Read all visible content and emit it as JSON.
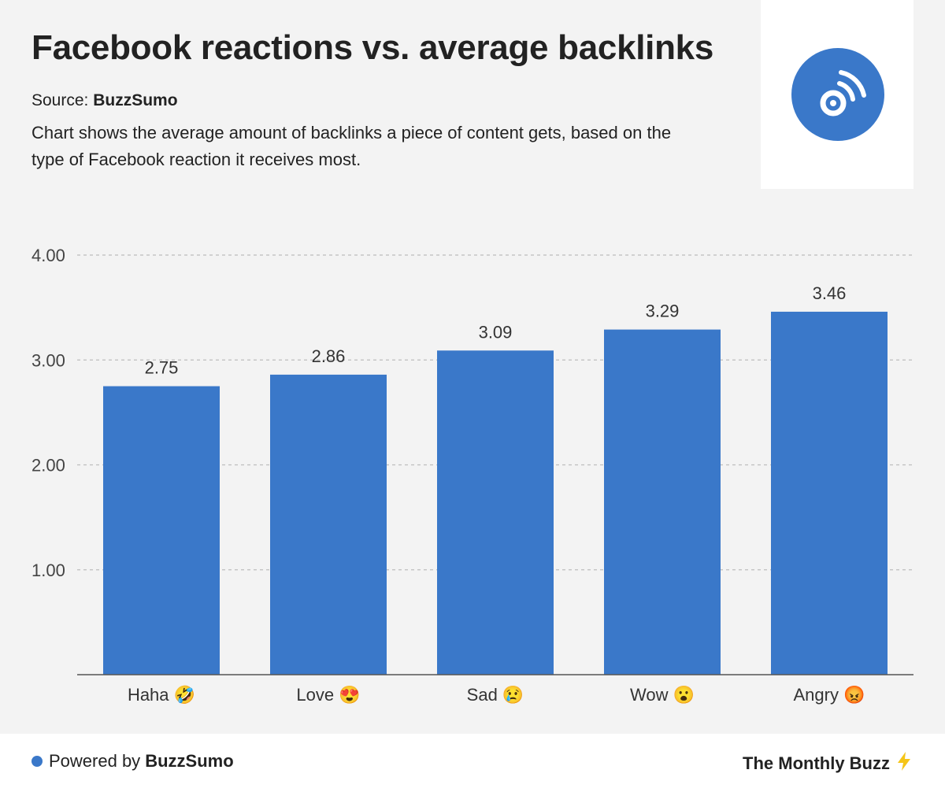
{
  "header": {
    "title": "Facebook reactions vs. average backlinks",
    "source_label": "Source:",
    "source_name": "BuzzSumo",
    "description": "Chart shows the average amount of backlinks a piece of content gets, based on the type of Facebook reaction it receives most."
  },
  "logo": {
    "icon": "signal-waves-icon",
    "color": "#3a78c9"
  },
  "chart_data": {
    "type": "bar",
    "categories": [
      "Haha 🤣",
      "Love 😍",
      "Sad 😢",
      "Wow 😮",
      "Angry 😡"
    ],
    "values": [
      2.75,
      2.86,
      3.09,
      3.29,
      3.46
    ],
    "value_labels": [
      "2.75",
      "2.86",
      "3.09",
      "3.29",
      "3.46"
    ],
    "y_ticks": [
      1,
      2,
      3,
      4
    ],
    "y_tick_labels": [
      "1.00",
      "2.00",
      "3.00",
      "4.00"
    ],
    "ylim": [
      0,
      4.0
    ],
    "grid": true,
    "bar_color": "#3a78c9",
    "title": "Facebook reactions vs. average backlinks",
    "xlabel": "",
    "ylabel": ""
  },
  "footer": {
    "powered_label": "Powered by",
    "powered_name": "BuzzSumo",
    "brand": "The Monthly Buzz",
    "brand_icon": "lightning-icon"
  }
}
